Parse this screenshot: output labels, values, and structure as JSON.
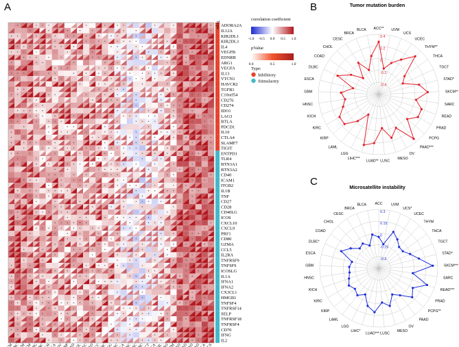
{
  "panels": {
    "A": "A",
    "B": "B",
    "C": "C"
  },
  "colors": {
    "negative": "#1d2bd1",
    "positive": "#b2181f",
    "mid": "#ffffff",
    "inhibitory": "#e8432c",
    "stimulatory": "#44b8c9",
    "tmb_line": "#e0202a",
    "msi_line": "#1c2ed6",
    "grid": "#c8c8c8"
  },
  "chart_data": [
    {
      "type": "heatmap",
      "title": "",
      "rows": [
        "ADORA2A",
        "IL12A",
        "KIR2DL1",
        "KIR2DL3",
        "IL4",
        "VEGFB",
        "EDNRB",
        "ARG1",
        "VEGFA",
        "IL13",
        "VTCN1",
        "HAVCR2",
        "TGFB1",
        "C10orf54",
        "CD276",
        "CD274",
        "IDO1",
        "LAG3",
        "BTLA",
        "PDCD1",
        "IL10",
        "CTLA4",
        "SLAMF7",
        "TIGIT",
        "ENTPD1",
        "TLR4",
        "BTN3A1",
        "BTN3A2",
        "CD40",
        "ICAM1",
        "ITGB2",
        "IL1B",
        "TNF",
        "CD27",
        "CD28",
        "CD40LG",
        "ICOS",
        "CXCL10",
        "CXCL9",
        "PRF1",
        "CD80",
        "GZMA",
        "CCL5",
        "IL2RA",
        "TNFRSF9",
        "TNFSF9",
        "ICOSLG",
        "IL1A",
        "IFNA1",
        "IFNA2",
        "CX3CL1",
        "HMGB1",
        "TNFSF4",
        "TNFRSF14",
        "SELP",
        "TNFRSF18",
        "TNFRSF4",
        "CD70",
        "IFNG",
        "IL2"
      ],
      "row_type": [
        "Inhibitory",
        "Inhibitory",
        "Inhibitory",
        "Inhibitory",
        "Inhibitory",
        "Inhibitory",
        "Inhibitory",
        "Inhibitory",
        "Inhibitory",
        "Inhibitory",
        "Inhibitory",
        "Inhibitory",
        "Inhibitory",
        "Inhibitory",
        "Inhibitory",
        "Inhibitory",
        "Inhibitory",
        "Inhibitory",
        "Inhibitory",
        "Inhibitory",
        "Inhibitory",
        "Inhibitory",
        "Inhibitory",
        "Inhibitory",
        "Stimulatory",
        "Stimulatory",
        "Stimulatory",
        "Stimulatory",
        "Stimulatory",
        "Stimulatory",
        "Stimulatory",
        "Stimulatory",
        "Stimulatory",
        "Stimulatory",
        "Stimulatory",
        "Stimulatory",
        "Stimulatory",
        "Stimulatory",
        "Stimulatory",
        "Stimulatory",
        "Stimulatory",
        "Stimulatory",
        "Stimulatory",
        "Stimulatory",
        "Stimulatory",
        "Stimulatory",
        "Stimulatory",
        "Stimulatory",
        "Stimulatory",
        "Stimulatory",
        "Stimulatory",
        "Stimulatory",
        "Stimulatory",
        "Stimulatory",
        "Stimulatory",
        "Stimulatory",
        "Stimulatory",
        "Stimulatory",
        "Stimulatory",
        "Stimulatory"
      ],
      "columns": [
        "THYM",
        "SARC",
        "UVM",
        "SKCM",
        "PCPG",
        "KIRC",
        "KICH",
        "BRCA",
        "OV",
        "KIRP",
        "LUAD",
        "CHOL",
        "UCEC",
        "PRAD",
        "ACC",
        "LIHC",
        "LGG",
        "CESC",
        "ESCA",
        "HNSC",
        "LUSC",
        "DLBC",
        "TGCT",
        "THCA",
        "LAML",
        "MESO",
        "GBM",
        "PAAD",
        "STAD",
        "READ",
        "COAD",
        "BLCA",
        "UCS"
      ],
      "type_header": "Type",
      "legend": {
        "corr_title": "correlation coefficient",
        "corr_ticks": [
          "-1.0",
          "-0.5",
          "0.0",
          "0.5",
          "1.0"
        ],
        "p_title": "pValue",
        "p_ticks": [
          "0.0",
          "0.5",
          "1.0"
        ],
        "type_title": "Type:",
        "type_items": [
          "Inhibitory",
          "Stimulaotry"
        ]
      }
    },
    {
      "type": "radar",
      "title": "Tumor mutation burden",
      "categories": [
        "ACC**",
        "UVM",
        "UCS",
        "UCEC",
        "THYM**",
        "THCA",
        "TGCT",
        "STAD*",
        "SKCM**",
        "SARC",
        "READ",
        "PRAD",
        "PCPG",
        "PAAD***",
        "OV",
        "MESO",
        "LUSC",
        "LUAD**",
        "LIHC***",
        "LGG",
        "LAML",
        "KIRP",
        "KIRC",
        "KICH",
        "HNSC",
        "GBM",
        "ESCA",
        "DLBC",
        "COAD",
        "CHOL",
        "CESC",
        "BRCA",
        "BLCA"
      ],
      "values": [
        0.3,
        -0.05,
        0.05,
        0.15,
        0.3,
        0.02,
        -0.05,
        0.15,
        0.25,
        0.1,
        0.2,
        0.2,
        0.1,
        0.35,
        0.1,
        0.2,
        0.05,
        0.25,
        0.3,
        -0.1,
        0.05,
        0.2,
        0.2,
        0.1,
        0.05,
        0.1,
        -0.05,
        0.2,
        0.05,
        -0.1,
        0.1,
        -0.05,
        0.12
      ],
      "rticks": [
        "0.4",
        "0.2",
        "0",
        "-0.2",
        "-0.4"
      ],
      "rlim": [
        -0.4,
        0.4
      ]
    },
    {
      "type": "radar",
      "title": "Microsatellite instability",
      "categories": [
        "ACC",
        "UVM",
        "UCS*",
        "UCEC",
        "THYM",
        "THCA",
        "TGCT",
        "STAD*",
        "SKCM***",
        "SARC",
        "READ***",
        "PRAD",
        "PCPG**",
        "PAAD",
        "OV",
        "MESO",
        "LUSC",
        "LUAD***",
        "LIHC*",
        "LGG",
        "LAML",
        "KIRP",
        "KIRC",
        "KICH",
        "HNSC",
        "GBM",
        "ESCA",
        "DLBC*",
        "COAD",
        "CHOL",
        "CESC",
        "BRCA",
        "BLCA"
      ],
      "values": [
        0.02,
        -0.05,
        0.1,
        0.05,
        0.0,
        0.0,
        0.05,
        0.12,
        0.25,
        0.05,
        0.22,
        0.1,
        0.15,
        0.05,
        0.0,
        0.1,
        0.05,
        0.15,
        0.1,
        0.0,
        0.05,
        0.02,
        0.05,
        0.02,
        0.0,
        0.0,
        -0.02,
        0.12,
        0.05,
        -0.02,
        0.0,
        -0.05,
        0.05
      ],
      "rticks": [
        "0.3",
        "0.15",
        "0",
        "-0.15",
        "-0.3"
      ],
      "rlim": [
        -0.3,
        0.3
      ]
    }
  ]
}
